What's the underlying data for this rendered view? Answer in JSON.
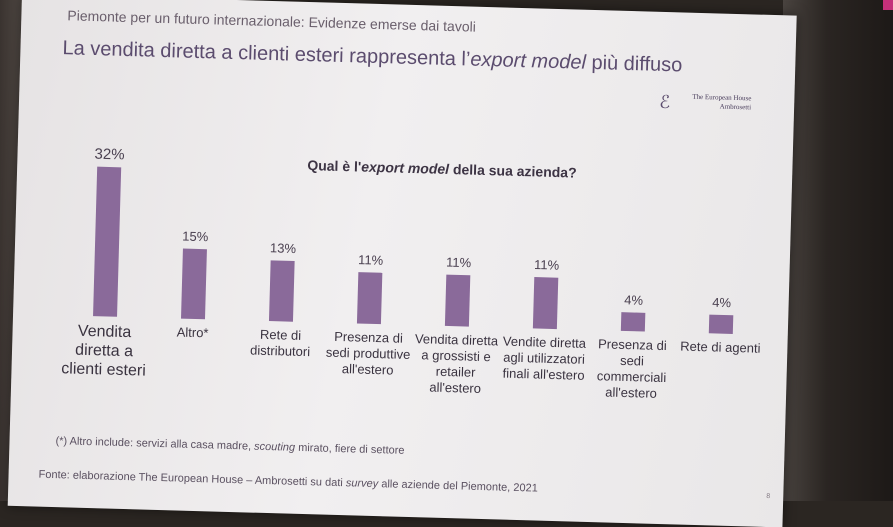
{
  "header": {
    "subtitle": "Piemonte per un futuro internazionale: Evidenze emerse dai tavoli",
    "title_before": "La vendita diretta a clienti esteri rappresenta l’",
    "title_em": "export model",
    "title_after": " più diffuso",
    "logo_line1": "The European House",
    "logo_line2": "Ambrosetti"
  },
  "question": {
    "before": "Qual è l'",
    "em": "export model",
    "after": " della sua azienda?"
  },
  "chart_data": {
    "type": "bar",
    "categories": [
      "Vendita diretta a clienti esteri",
      "Altro*",
      "Rete di distributori",
      "Presenza di sedi produttive all'estero",
      "Vendita diretta a grossisti e retailer all'estero",
      "Vendite diretta agli utilizzatori finali all'estero",
      "Presenza di sedi commerciali all'estero",
      "Rete di agenti"
    ],
    "values": [
      32,
      15,
      13,
      11,
      11,
      11,
      4,
      4
    ],
    "value_labels": [
      "32%",
      "15%",
      "13%",
      "11%",
      "11%",
      "11%",
      "4%",
      "4%"
    ],
    "ylim": [
      0,
      35
    ],
    "grid": false,
    "bar_color": "#8a6a9a"
  },
  "footer": {
    "note_before": "(*) Altro include: servizi alla casa madre, ",
    "note_em": "scouting",
    "note_after": " mirato, fiere di settore",
    "source_before": "Fonte: elaborazione The European House – Ambrosetti su dati ",
    "source_em": "survey",
    "source_after": " alle aziende del Piemonte, 2021",
    "page_number": "8"
  }
}
